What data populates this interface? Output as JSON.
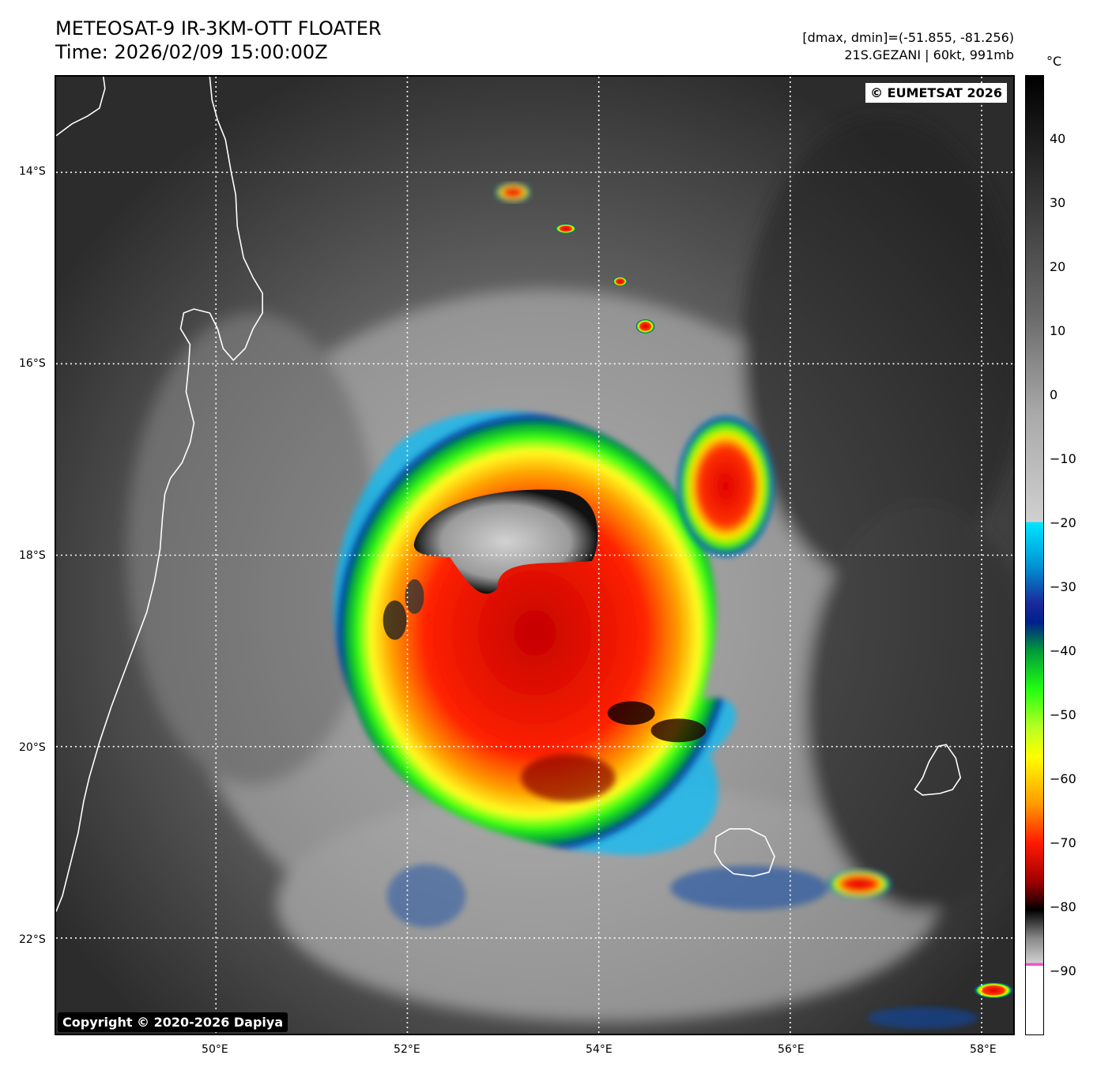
{
  "header": {
    "title_line1": "METEOSAT-9 IR-3KM-OTT FLOATER",
    "title_line2": "Time: 2026/02/09 15:00:00Z",
    "info_line1": "[dmax, dmin]=(-51.855, -81.256)",
    "info_line2": "21S.GEZANI | 60kt, 991mb"
  },
  "map": {
    "eumetsat_credit": "© EUMETSAT 2026",
    "dapiya_credit": "Copyright © 2020-2026 Dapiya",
    "lon_min": 48.33,
    "lon_max": 58.33,
    "lat_top": -13.0,
    "lat_bottom": -23.0,
    "lat_labels": [
      "14°S",
      "16°S",
      "18°S",
      "20°S",
      "22°S"
    ],
    "lat_values": [
      -14,
      -16,
      -18,
      -20,
      -22
    ],
    "lon_labels": [
      "50°E",
      "52°E",
      "54°E",
      "56°E",
      "58°E"
    ],
    "lon_values": [
      50,
      52,
      54,
      56,
      58
    ],
    "storm_center": {
      "lon": 53.0,
      "lat": -18.4
    }
  },
  "colorbar": {
    "unit": "°C",
    "ticks": [
      "40",
      "30",
      "20",
      "10",
      "0",
      "−10",
      "−20",
      "−30",
      "−40",
      "−50",
      "−60",
      "−70",
      "−80",
      "−90"
    ],
    "tick_values": [
      40,
      30,
      20,
      10,
      0,
      -10,
      -20,
      -30,
      -40,
      -50,
      -60,
      -70,
      -80,
      -90
    ],
    "min": -100,
    "max": 50
  }
}
